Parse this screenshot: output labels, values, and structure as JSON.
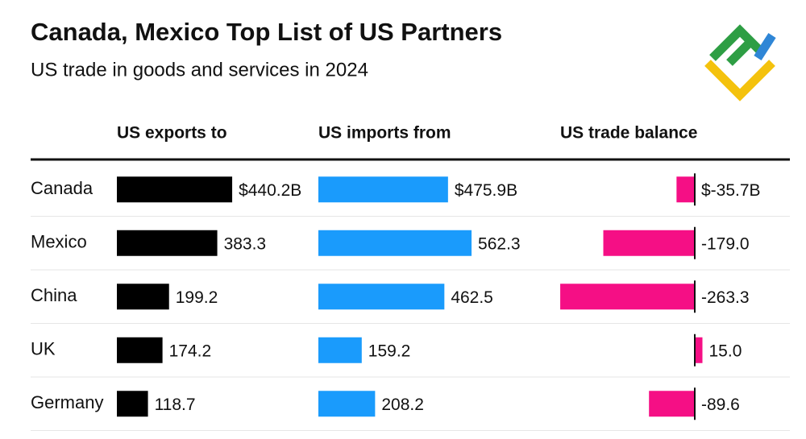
{
  "chart_data": {
    "type": "bar",
    "title": "Canada, Mexico Top List of US Partners",
    "subtitle": "US trade in goods and services in 2024",
    "categories": [
      "Canada",
      "Mexico",
      "China",
      "UK",
      "Germany"
    ],
    "series": [
      {
        "name": "US exports to",
        "color": "#000000",
        "values": [
          440.2,
          383.3,
          199.2,
          174.2,
          118.7
        ],
        "value_labels": [
          "$440.2B",
          "383.3",
          "199.2",
          "174.2",
          "118.7"
        ]
      },
      {
        "name": "US imports from",
        "color": "#1a9bfc",
        "values": [
          475.9,
          562.3,
          462.5,
          159.2,
          208.2
        ],
        "value_labels": [
          "$475.9B",
          "562.3",
          "462.5",
          "159.2",
          "208.2"
        ]
      },
      {
        "name": "US trade balance",
        "color": "#f50f85",
        "values": [
          -35.7,
          -179.0,
          -263.3,
          15.0,
          -89.6
        ],
        "value_labels": [
          "$-35.7B",
          "-179.0",
          "-263.3",
          "15.0",
          "-89.6"
        ]
      }
    ]
  }
}
